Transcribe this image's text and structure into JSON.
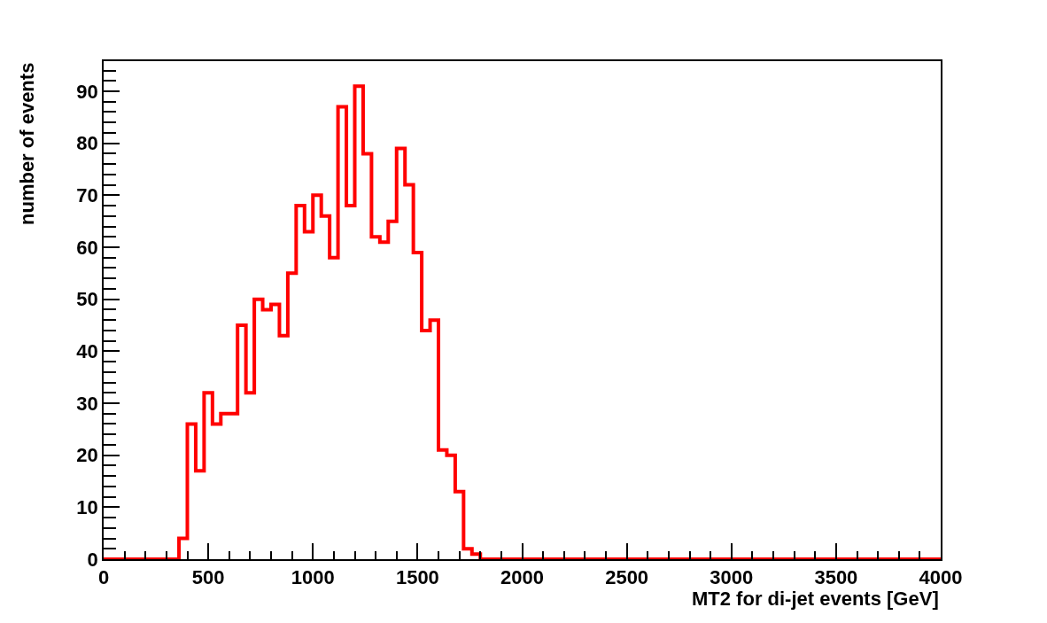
{
  "chart_data": {
    "type": "histogram",
    "xlabel": "MT2 for di-jet events [GeV]",
    "ylabel": "number of events",
    "color": "#ff0000",
    "bins": [
      0,
      40,
      80,
      120,
      160,
      200,
      240,
      280,
      320,
      360,
      400,
      440,
      480,
      520,
      560,
      600,
      640,
      680,
      720,
      760,
      800,
      840,
      880,
      920,
      960,
      1000,
      1040,
      1080,
      1120,
      1160,
      1200,
      1240,
      1280,
      1320,
      1360,
      1400,
      1440,
      1480,
      1520,
      1560,
      1600,
      1640,
      1680,
      1720,
      1760,
      1800,
      1840,
      1880,
      1920,
      1960,
      2000,
      2040,
      2080,
      2120,
      2160,
      2200,
      2240,
      2280,
      2320,
      2360,
      2400,
      2440,
      2480,
      2520,
      2560,
      2600,
      2640,
      2680,
      2720,
      2760,
      2800,
      2840,
      2880,
      2920,
      2960,
      3000,
      3040,
      3080,
      3120,
      3160,
      3200,
      3240,
      3280,
      3320,
      3360,
      3400,
      3440,
      3480,
      3520,
      3560,
      3600,
      3640,
      3680,
      3720,
      3760,
      3800,
      3840,
      3880,
      3920,
      3960,
      4000
    ],
    "values": [
      0,
      0,
      0,
      0,
      0,
      0,
      0,
      0,
      0,
      4,
      26,
      17,
      32,
      26,
      28,
      28,
      45,
      32,
      50,
      48,
      49,
      43,
      55,
      68,
      63,
      70,
      66,
      58,
      87,
      68,
      91,
      78,
      62,
      61,
      65,
      79,
      72,
      59,
      44,
      46,
      21,
      20,
      13,
      2,
      1,
      0,
      0,
      0,
      0,
      0,
      0,
      0,
      0,
      0,
      0,
      0,
      0,
      0,
      0,
      0,
      0,
      0,
      0,
      0,
      0,
      0,
      0,
      0,
      0,
      0,
      0,
      0,
      0,
      0,
      0,
      0,
      0,
      0,
      0,
      0,
      0,
      0,
      0,
      0,
      0,
      0,
      0,
      0,
      0,
      0,
      0,
      0,
      0,
      0,
      0,
      0,
      0,
      0,
      0,
      0
    ],
    "xlim": [
      0,
      4000
    ],
    "xticks": [
      0,
      500,
      1000,
      1500,
      2000,
      2500,
      3000,
      3500,
      4000
    ],
    "ylim": [
      0,
      95.8
    ],
    "yticks": [
      0,
      10,
      20,
      30,
      40,
      50,
      60,
      70,
      80,
      90
    ],
    "grid": false,
    "legend": false
  }
}
